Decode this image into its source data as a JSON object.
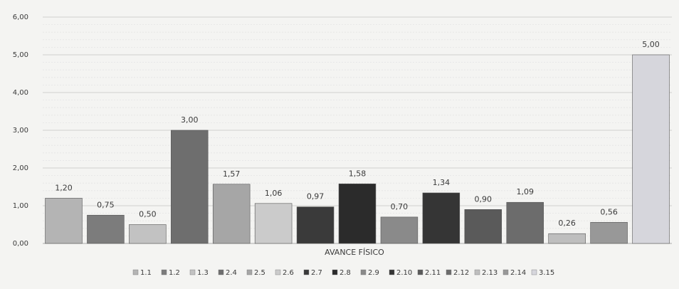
{
  "chart_data": {
    "type": "bar",
    "xlabel": "AVANCE FÍSICO",
    "ylabel": "",
    "ylim": [
      0,
      6
    ],
    "yticks": [
      "0,00",
      "1,00",
      "2,00",
      "3,00",
      "4,00",
      "5,00",
      "6,00"
    ],
    "grid": true,
    "minor_grid": true,
    "legend_position": "bottom",
    "categories": [
      "1.1",
      "1.2",
      "1.3",
      "2.4",
      "2.5",
      "2.6",
      "2.7",
      "2.8",
      "2.9",
      "2.10",
      "2.11",
      "2.12",
      "2.13",
      "2.14",
      "3.15"
    ],
    "values": [
      1.2,
      0.75,
      0.5,
      3.0,
      1.57,
      1.06,
      0.97,
      1.58,
      0.7,
      1.34,
      0.9,
      1.09,
      0.26,
      0.56,
      5.0
    ],
    "value_labels": [
      "1,20",
      "0,75",
      "0,50",
      "3,00",
      "1,57",
      "1,06",
      "0,97",
      "1,58",
      "0,70",
      "1,34",
      "0,90",
      "1,09",
      "0,26",
      "0,56",
      "5,00"
    ],
    "colors": [
      "#b4b4b4",
      "#7c7c7c",
      "#c2c2c2",
      "#6e6e6e",
      "#a6a6a6",
      "#cbcbcb",
      "#3a3a3a",
      "#2b2b2b",
      "#8a8a8a",
      "#353535",
      "#5a5a5a",
      "#6c6c6c",
      "#bebebe",
      "#989898",
      "#d6d6dc"
    ]
  }
}
